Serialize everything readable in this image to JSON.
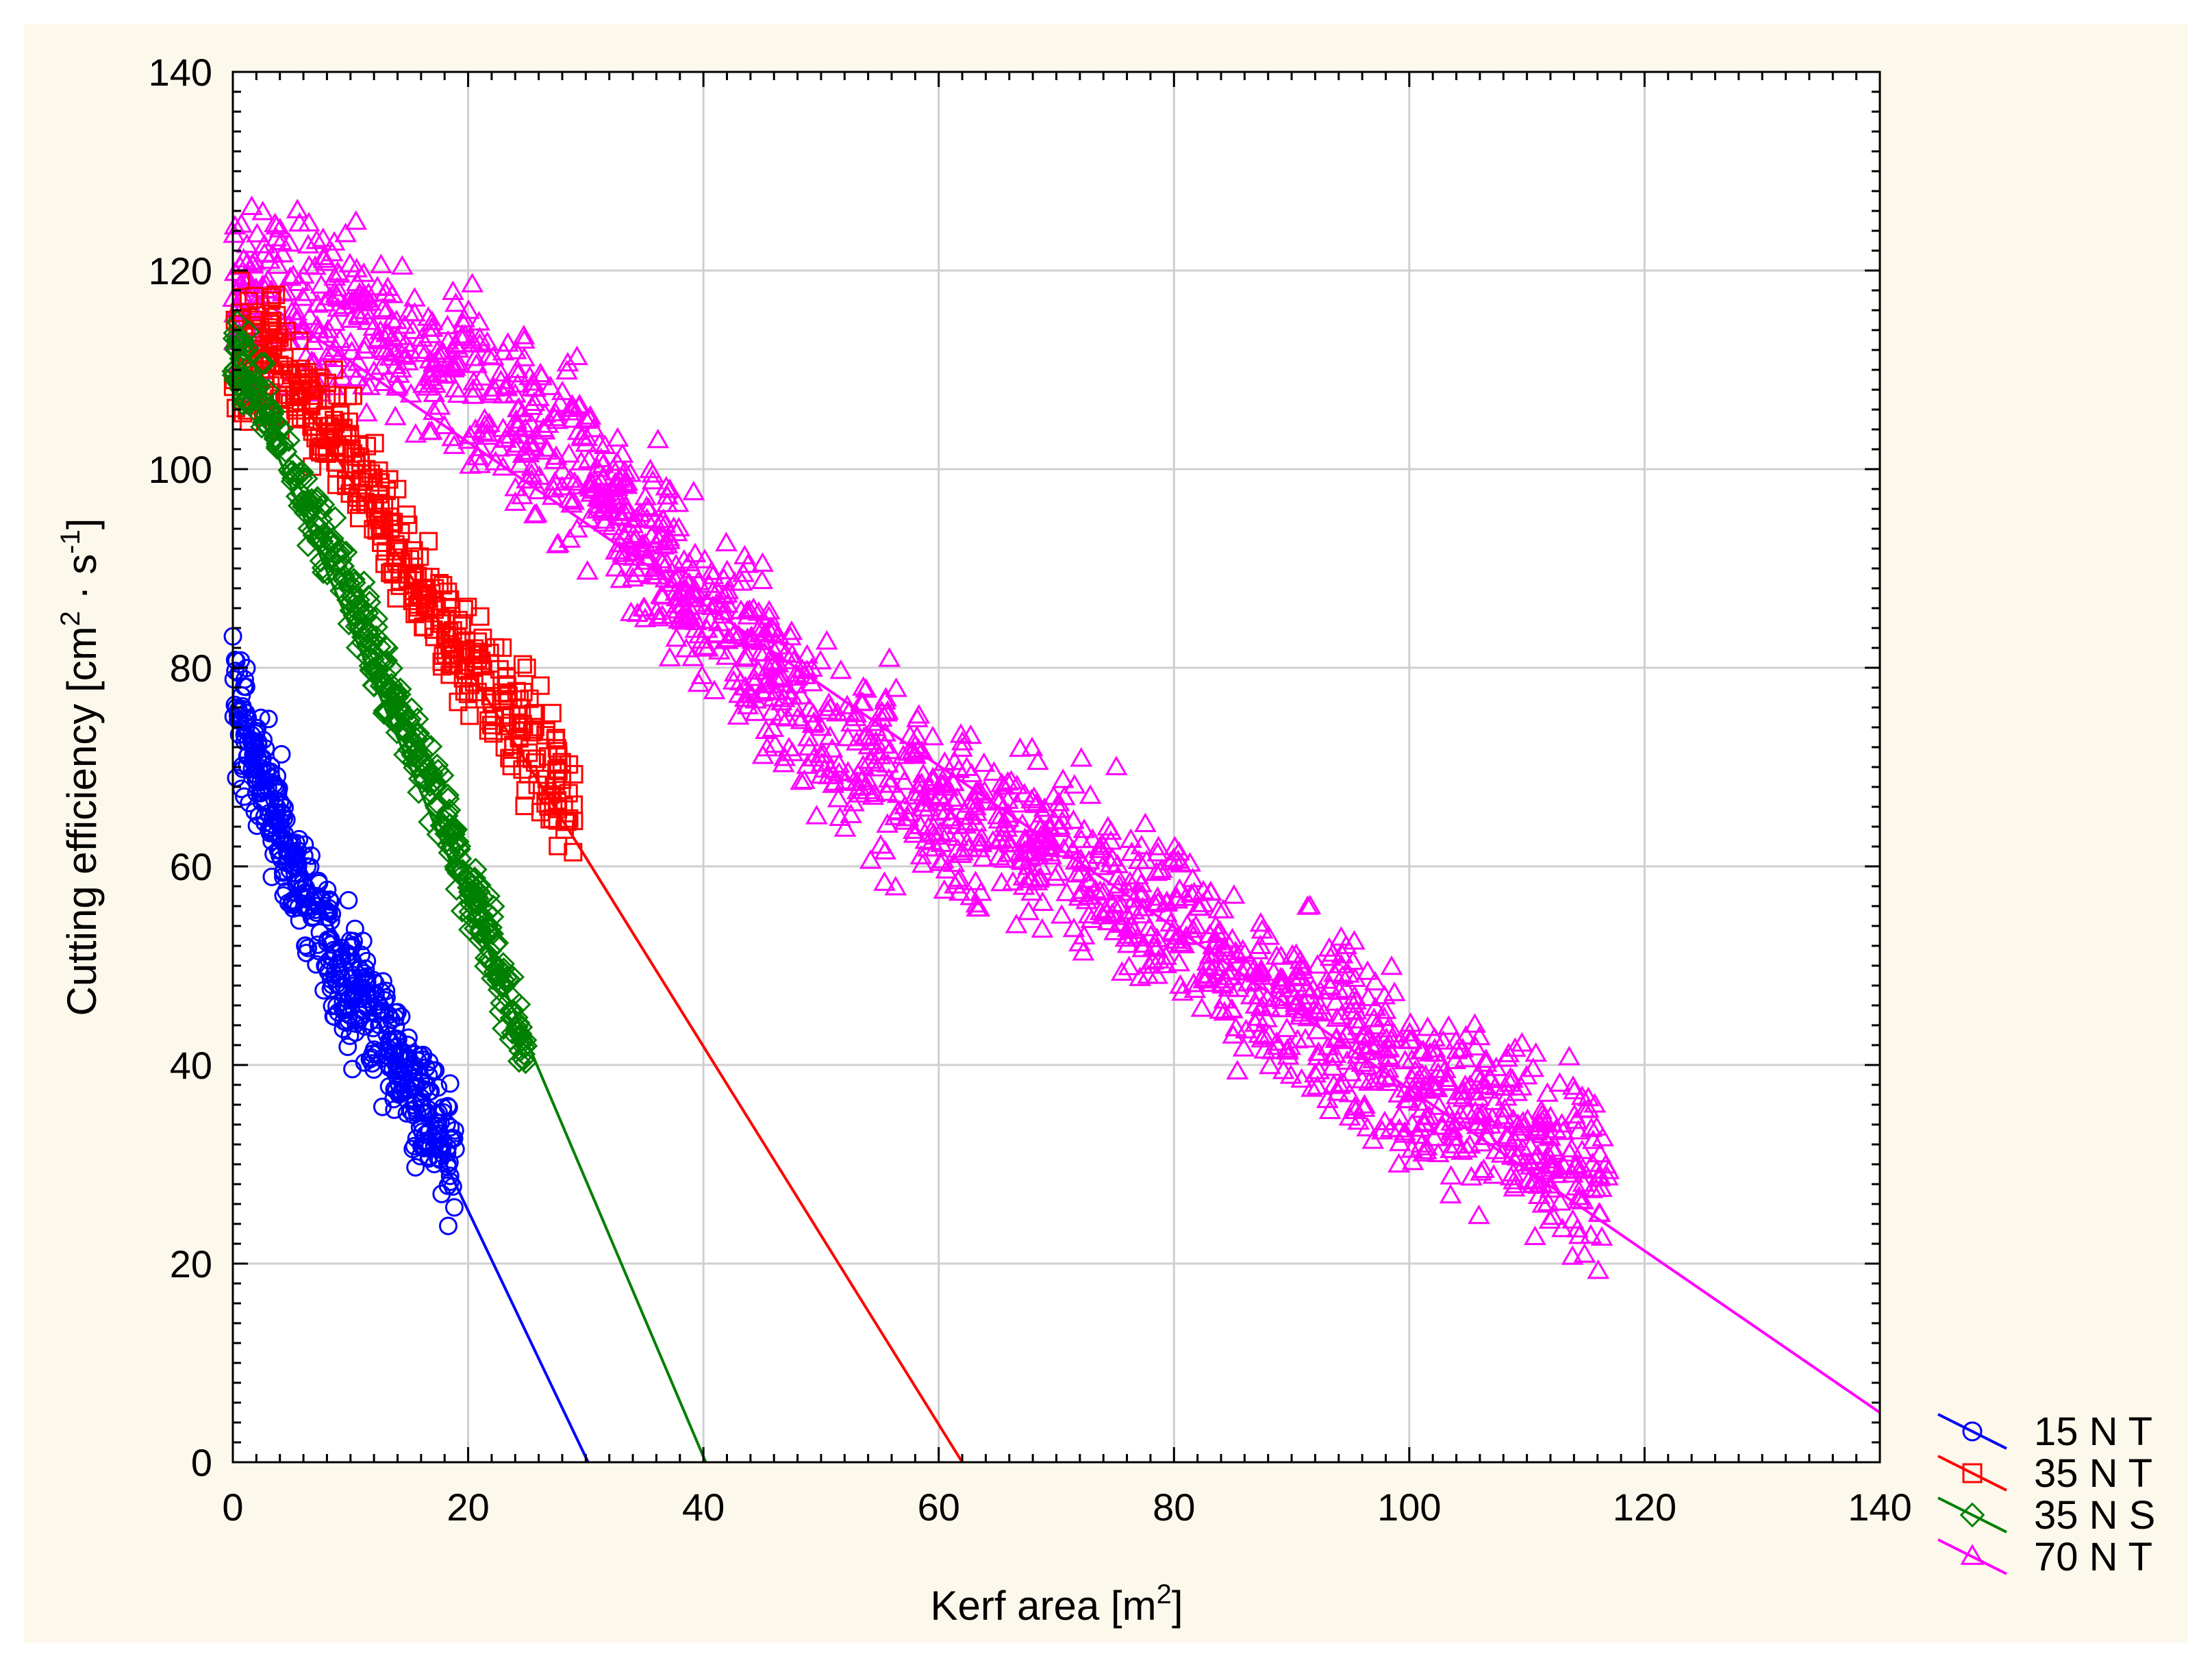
{
  "chart_data": {
    "type": "scatter",
    "title": "",
    "xlabel": "Kerf area [m",
    "xlabel_sup": "2",
    "xlabel_tail": "]",
    "ylabel": "Cutting efficiency [cm",
    "ylabel_sup1": "2",
    "ylabel_mid": " · s",
    "ylabel_sup2": "-1",
    "ylabel_tail": "]",
    "xlim": [
      0,
      140
    ],
    "ylim": [
      0,
      140
    ],
    "xticks": [
      0,
      20,
      40,
      60,
      80,
      100,
      120,
      140
    ],
    "yticks": [
      0,
      20,
      40,
      60,
      80,
      100,
      120,
      140
    ],
    "xticks_labels": [
      "0",
      "20",
      "40",
      "60",
      "80",
      "100",
      "120",
      "140"
    ],
    "yticks_labels": [
      "0",
      "20",
      "40",
      "60",
      "80",
      "100",
      "120",
      "140"
    ],
    "grid": true,
    "legend_position": "bottom-right outside",
    "background_color": "#fdf8ec",
    "series": [
      {
        "name": "15 N T",
        "color": "#0000ff",
        "marker": "circle",
        "fit": {
          "x": [
            0,
            30.2
          ],
          "y": [
            75,
            0
          ]
        },
        "scatter": {
          "x_range": [
            0,
            19
          ],
          "seed": 15,
          "count": 520,
          "trend": [
            [
              0,
              78
            ],
            [
              2,
              70
            ],
            [
              5,
              60
            ],
            [
              8,
              52
            ],
            [
              11,
              46
            ],
            [
              14,
              40
            ],
            [
              17,
              34
            ],
            [
              19,
              29
            ]
          ],
          "spread": 5
        }
      },
      {
        "name": "35 N T",
        "color": "#ff0000",
        "marker": "square",
        "fit": {
          "x": [
            0,
            62
          ],
          "y": [
            118,
            0
          ]
        },
        "scatter": {
          "x_range": [
            0,
            29
          ],
          "seed": 35,
          "count": 420,
          "trend": [
            [
              0,
              112
            ],
            [
              4,
              110
            ],
            [
              8,
              105
            ],
            [
              12,
              98
            ],
            [
              15,
              90
            ],
            [
              18,
              84
            ],
            [
              22,
              78
            ],
            [
              26,
              72
            ],
            [
              29,
              64
            ]
          ],
          "spread": 5
        }
      },
      {
        "name": "35 N S",
        "color": "#008000",
        "marker": "diamond",
        "fit": {
          "x": [
            0,
            40.2
          ],
          "y": [
            112,
            0
          ]
        },
        "scatter": {
          "x_range": [
            0,
            25
          ],
          "seed": 53,
          "count": 420,
          "trend": [
            [
              0,
              112
            ],
            [
              3,
              106
            ],
            [
              6,
              97
            ],
            [
              9,
              90
            ],
            [
              12,
              82
            ],
            [
              15,
              73
            ],
            [
              18,
              66
            ],
            [
              20,
              58
            ],
            [
              22,
              52
            ],
            [
              25,
              41
            ]
          ],
          "spread": 3
        }
      },
      {
        "name": "70 N T",
        "color": "#ff00ff",
        "marker": "triangle",
        "fit": {
          "x": [
            0,
            140
          ],
          "y": [
            119,
            5
          ]
        },
        "scatter": {
          "x_range": [
            0,
            117
          ],
          "seed": 70,
          "count": 1700,
          "trend": [
            [
              0,
              118
            ],
            [
              10,
              116
            ],
            [
              20,
              108
            ],
            [
              30,
              100
            ],
            [
              40,
              86
            ],
            [
              50,
              74
            ],
            [
              60,
              66
            ],
            [
              70,
              62
            ],
            [
              80,
              54
            ],
            [
              85,
              48
            ],
            [
              95,
              44
            ],
            [
              100,
              38
            ],
            [
              105,
              36
            ],
            [
              110,
              33
            ],
            [
              117,
              28
            ]
          ],
          "spread": 7
        }
      }
    ]
  }
}
